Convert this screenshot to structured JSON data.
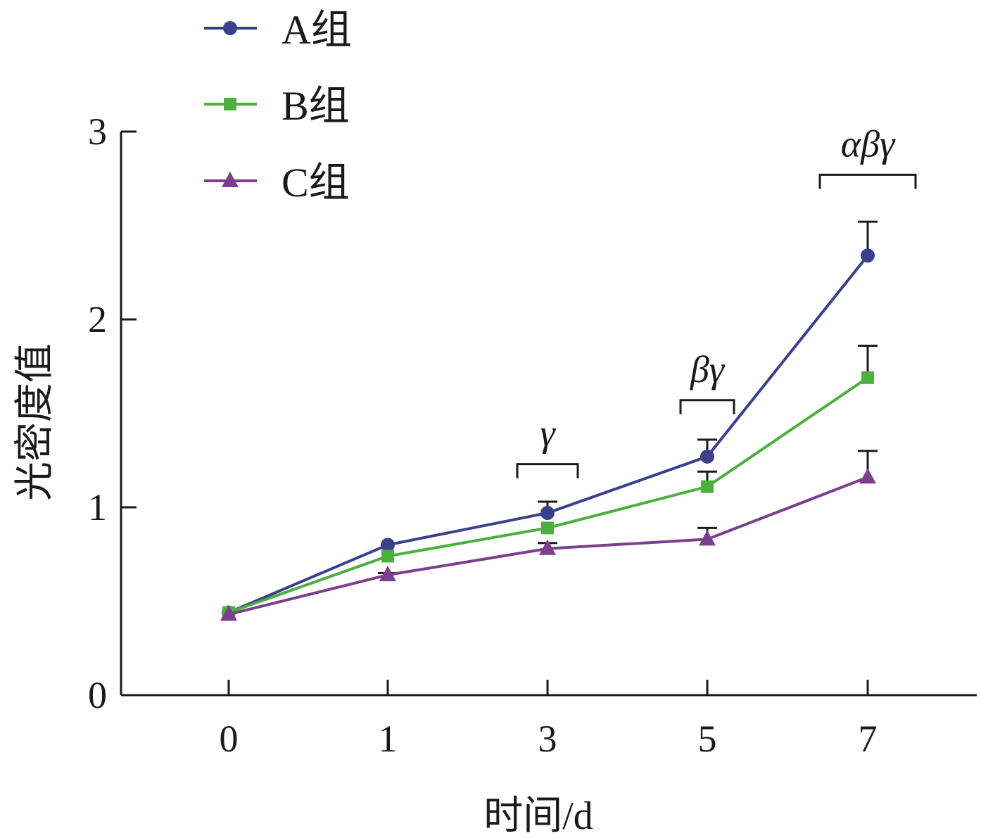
{
  "chart_data": {
    "type": "line",
    "title": "",
    "xlabel": "时间/d",
    "ylabel": "光密度值",
    "x": [
      0,
      1,
      3,
      5,
      7
    ],
    "x_tick_labels": [
      "0",
      "1",
      "3",
      "5",
      "7"
    ],
    "y_ticks": [
      0,
      1,
      2,
      3
    ],
    "y_tick_labels": [
      "0",
      "1",
      "2",
      "3"
    ],
    "ylim": [
      0,
      3
    ],
    "grid": false,
    "legend_position": "top-left",
    "series": [
      {
        "name": "A组",
        "marker": "circle",
        "color": "#3b3f8c",
        "values": [
          0.44,
          0.8,
          0.97,
          1.27,
          2.34
        ],
        "error": [
          0.0,
          0.0,
          0.06,
          0.09,
          0.18
        ]
      },
      {
        "name": "B组",
        "marker": "square",
        "color": "#4caf3e",
        "values": [
          0.44,
          0.74,
          0.89,
          1.11,
          1.69
        ],
        "error": [
          0.0,
          0.0,
          0.0,
          0.08,
          0.17
        ]
      },
      {
        "name": "C组",
        "marker": "triangle",
        "color": "#7b3f8e",
        "values": [
          0.43,
          0.64,
          0.78,
          0.83,
          1.16
        ],
        "error": [
          0.0,
          0.01,
          0.03,
          0.06,
          0.14
        ]
      }
    ],
    "annotations": [
      {
        "text": "γ",
        "x": 3,
        "y": 1.23
      },
      {
        "text": "βγ",
        "x": 5,
        "y": 1.57
      },
      {
        "text": "αβγ",
        "x": 7,
        "y": 2.77
      }
    ]
  }
}
